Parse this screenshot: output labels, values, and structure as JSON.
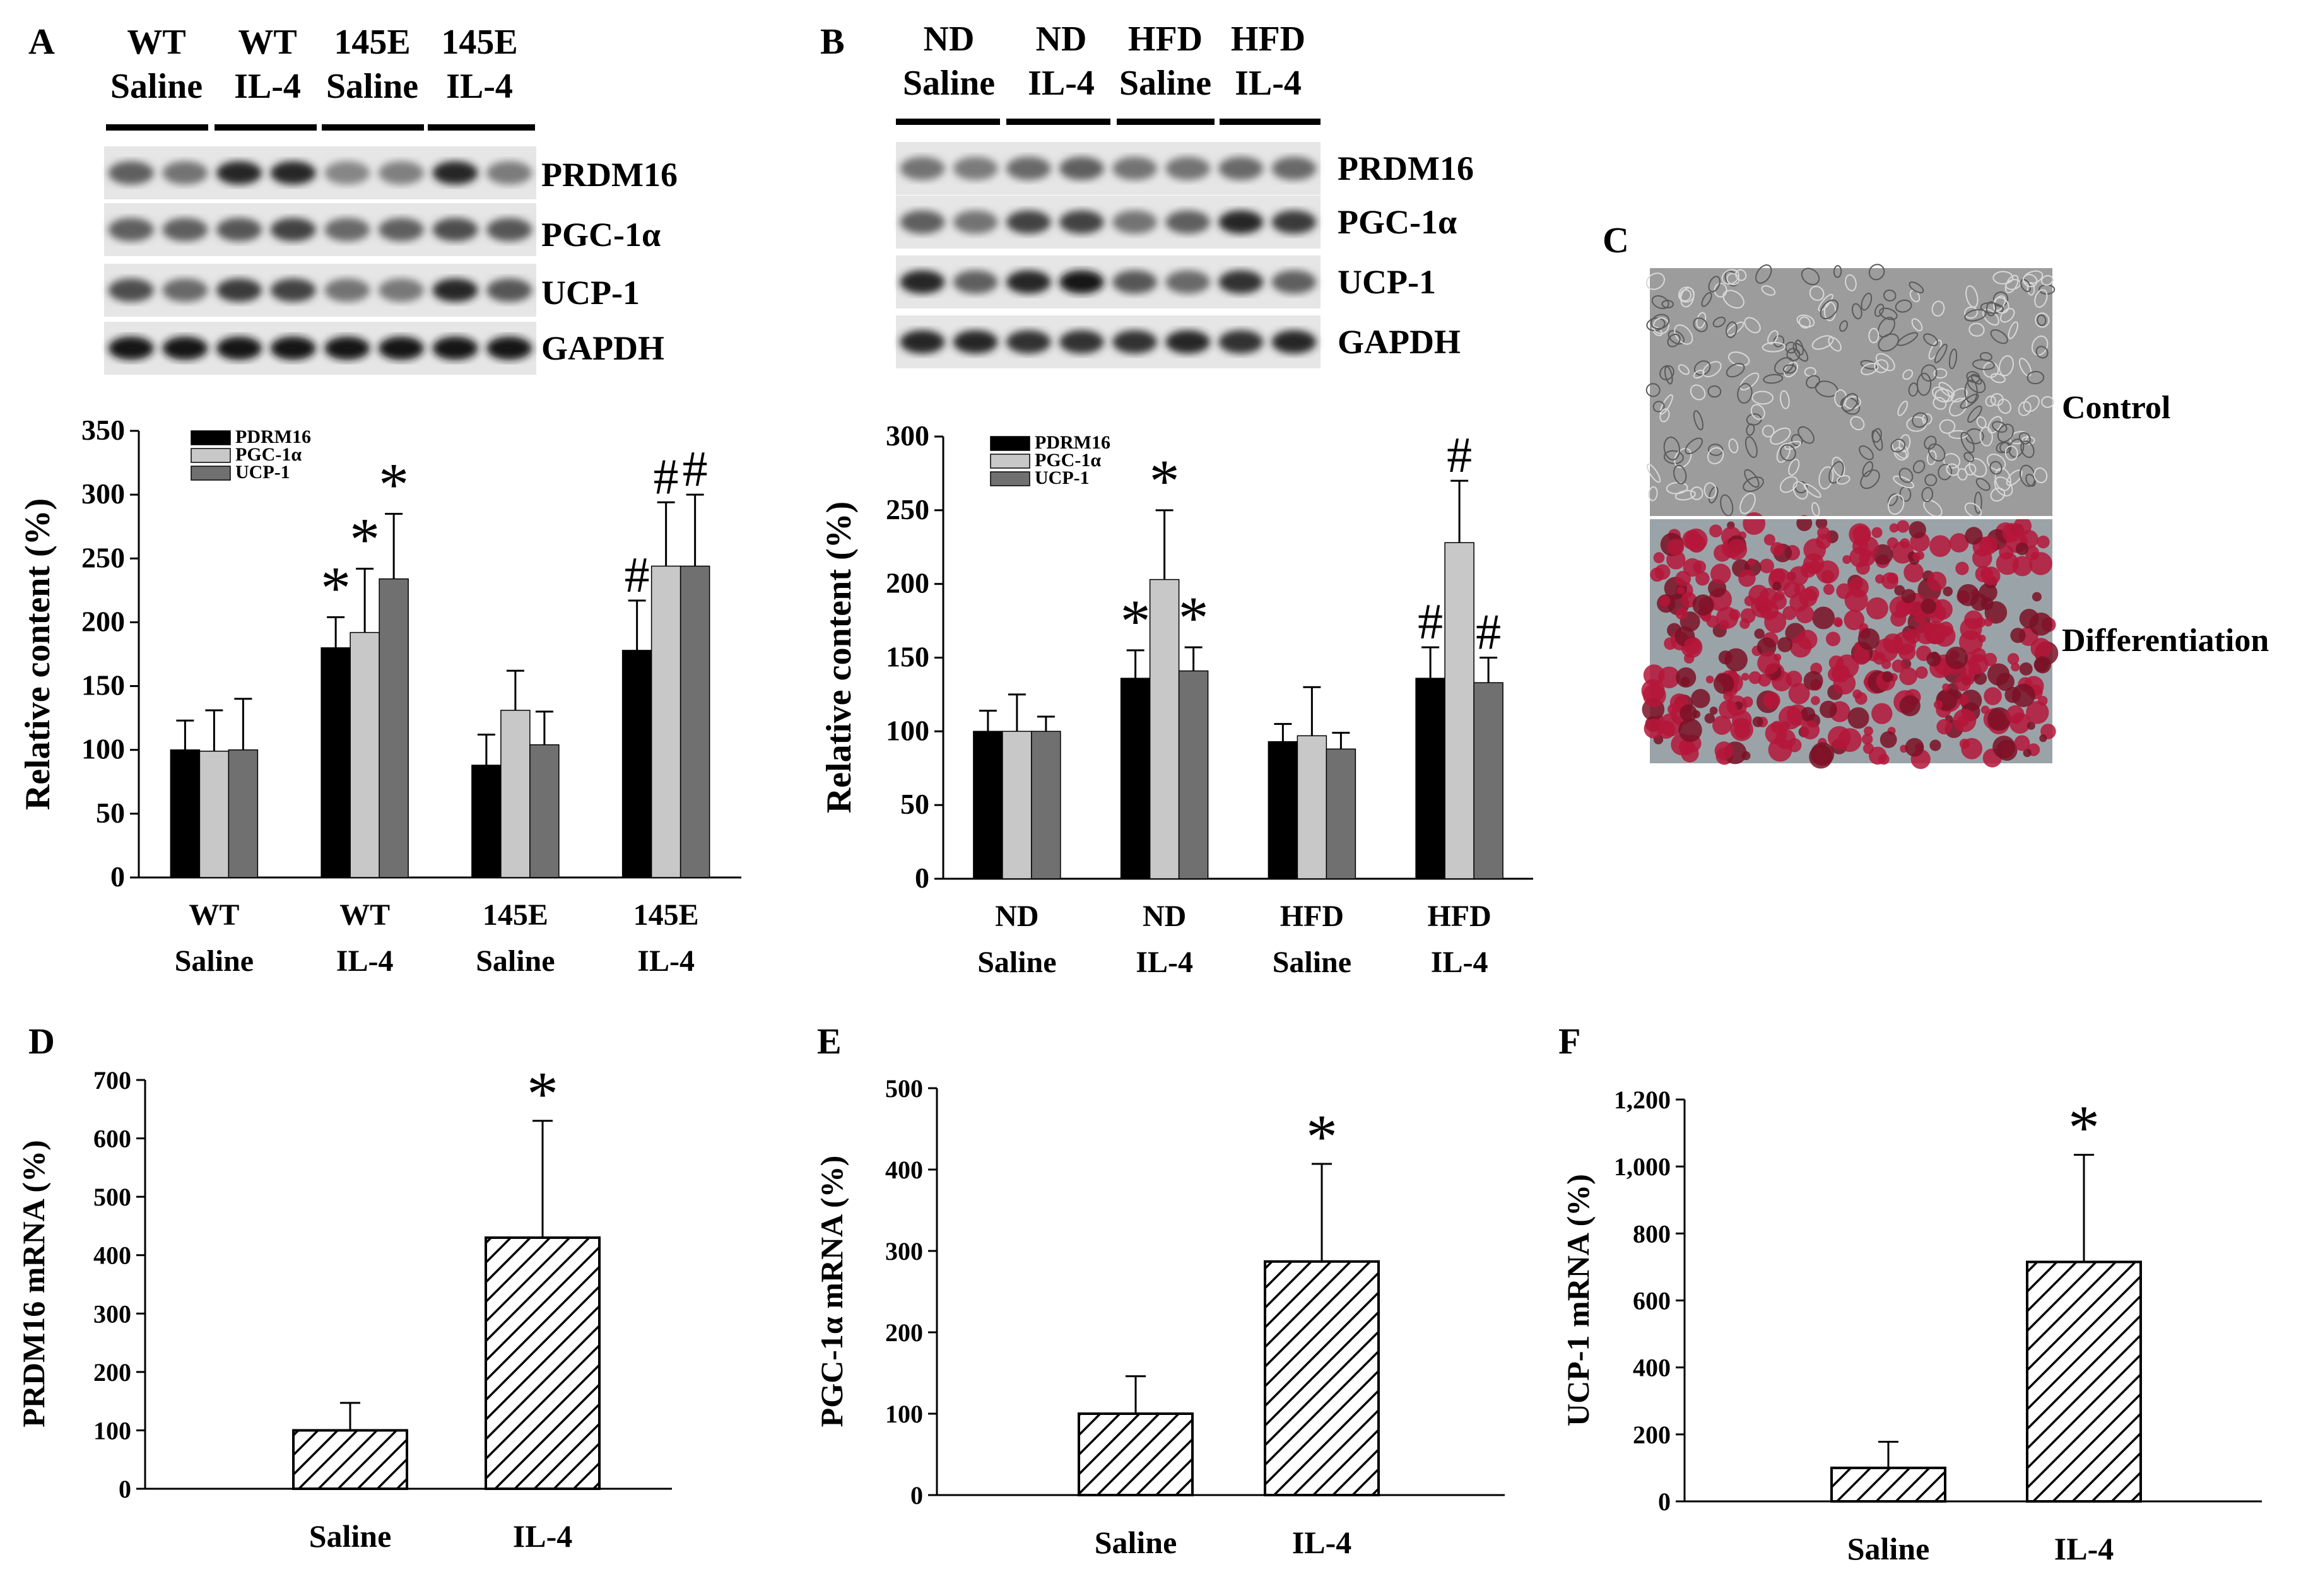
{
  "panels": {
    "a": "A",
    "b": "B",
    "c": "C",
    "d": "D",
    "e": "E",
    "f": "F"
  },
  "blot_a": {
    "groups": [
      {
        "top": "WT",
        "bottom": "Saline"
      },
      {
        "top": "WT",
        "bottom": "IL-4"
      },
      {
        "top": "145E",
        "bottom": "Saline"
      },
      {
        "top": "145E",
        "bottom": "IL-4"
      }
    ],
    "rows": [
      "PRDM16",
      "PGC-1α",
      "UCP-1",
      "GAPDH"
    ]
  },
  "blot_b": {
    "groups": [
      {
        "top": "ND",
        "bottom": "Saline"
      },
      {
        "top": "ND",
        "bottom": "IL-4"
      },
      {
        "top": "HFD",
        "bottom": "Saline"
      },
      {
        "top": "HFD",
        "bottom": "IL-4"
      }
    ],
    "rows": [
      "PRDM16",
      "PGC-1α",
      "UCP-1",
      "GAPDH"
    ]
  },
  "micrographs": {
    "top_label": "Control",
    "bottom_label": "Differentiation"
  },
  "colors": {
    "series": [
      "#000000",
      "#c8c8c8",
      "#707070"
    ],
    "stain": "#b5163a",
    "blot_background": "#e6e6e6"
  },
  "chart_data": [
    {
      "id": "A",
      "type": "bar",
      "ylabel": "Relative content (%)",
      "ylim": [
        0,
        350
      ],
      "yticks": [
        "0",
        "50",
        "100",
        "150",
        "200",
        "250",
        "300",
        "350"
      ],
      "categories": [
        {
          "top": "WT",
          "bottom": "Saline"
        },
        {
          "top": "WT",
          "bottom": "IL-4"
        },
        {
          "top": "145E",
          "bottom": "Saline"
        },
        {
          "top": "145E",
          "bottom": "IL-4"
        }
      ],
      "legend": "top-left",
      "series": [
        {
          "name": "PDRM16",
          "values": [
            100,
            180,
            88,
            178
          ],
          "errors": [
            23,
            24,
            24,
            39
          ],
          "marks": [
            "",
            "*",
            "",
            "#"
          ]
        },
        {
          "name": "PGC-1α",
          "values": [
            99,
            192,
            131,
            244
          ],
          "errors": [
            32,
            50,
            31,
            50
          ],
          "marks": [
            "",
            "*",
            "",
            "#"
          ]
        },
        {
          "name": "UCP-1",
          "values": [
            100,
            234,
            104,
            244
          ],
          "errors": [
            40,
            51,
            26,
            56
          ],
          "marks": [
            "",
            "*",
            "",
            "#"
          ]
        }
      ]
    },
    {
      "id": "B",
      "type": "bar",
      "ylabel": "Relative content (%)",
      "ylim": [
        0,
        300
      ],
      "yticks": [
        "0",
        "50",
        "100",
        "150",
        "200",
        "250",
        "300"
      ],
      "categories": [
        {
          "top": "ND",
          "bottom": "Saline"
        },
        {
          "top": "ND",
          "bottom": "IL-4"
        },
        {
          "top": "HFD",
          "bottom": "Saline"
        },
        {
          "top": "HFD",
          "bottom": "IL-4"
        }
      ],
      "legend": "top-left",
      "series": [
        {
          "name": "PDRM16",
          "values": [
            100,
            136,
            93,
            136
          ],
          "errors": [
            14,
            19,
            12,
            21
          ],
          "marks": [
            "",
            "*",
            "",
            "#"
          ]
        },
        {
          "name": "PGC-1α",
          "values": [
            100,
            203,
            97,
            228
          ],
          "errors": [
            25,
            47,
            33,
            42
          ],
          "marks": [
            "",
            "*",
            "",
            "#"
          ]
        },
        {
          "name": "UCP-1",
          "values": [
            100,
            141,
            88,
            133
          ],
          "errors": [
            10,
            16,
            11,
            17
          ],
          "marks": [
            "",
            "*",
            "",
            "#"
          ]
        }
      ]
    },
    {
      "id": "D",
      "type": "bar",
      "ylabel": "PRDM16 mRNA (%)",
      "ylim": [
        0,
        700
      ],
      "yticks": [
        "0",
        "100",
        "200",
        "300",
        "400",
        "500",
        "600",
        "700"
      ],
      "categories": [
        "Saline",
        "IL-4"
      ],
      "values": [
        100,
        430
      ],
      "errors": [
        47,
        200
      ],
      "marks": [
        "",
        "*"
      ]
    },
    {
      "id": "E",
      "type": "bar",
      "ylabel": "PGC-1α mRNA (%)",
      "ylim": [
        0,
        500
      ],
      "yticks": [
        "0",
        "100",
        "200",
        "300",
        "400",
        "500"
      ],
      "categories": [
        "Saline",
        "IL-4"
      ],
      "values": [
        100,
        287
      ],
      "errors": [
        46,
        120
      ],
      "marks": [
        "",
        "*"
      ]
    },
    {
      "id": "F",
      "type": "bar",
      "ylabel": "UCP-1 mRNA (%)",
      "ylim": [
        0,
        1200
      ],
      "yticks": [
        "0",
        "200",
        "400",
        "600",
        "800",
        "1,000",
        "1,200"
      ],
      "categories": [
        "Saline",
        "IL-4"
      ],
      "values": [
        100,
        715
      ],
      "errors": [
        78,
        320
      ],
      "marks": [
        "",
        "*"
      ]
    }
  ]
}
